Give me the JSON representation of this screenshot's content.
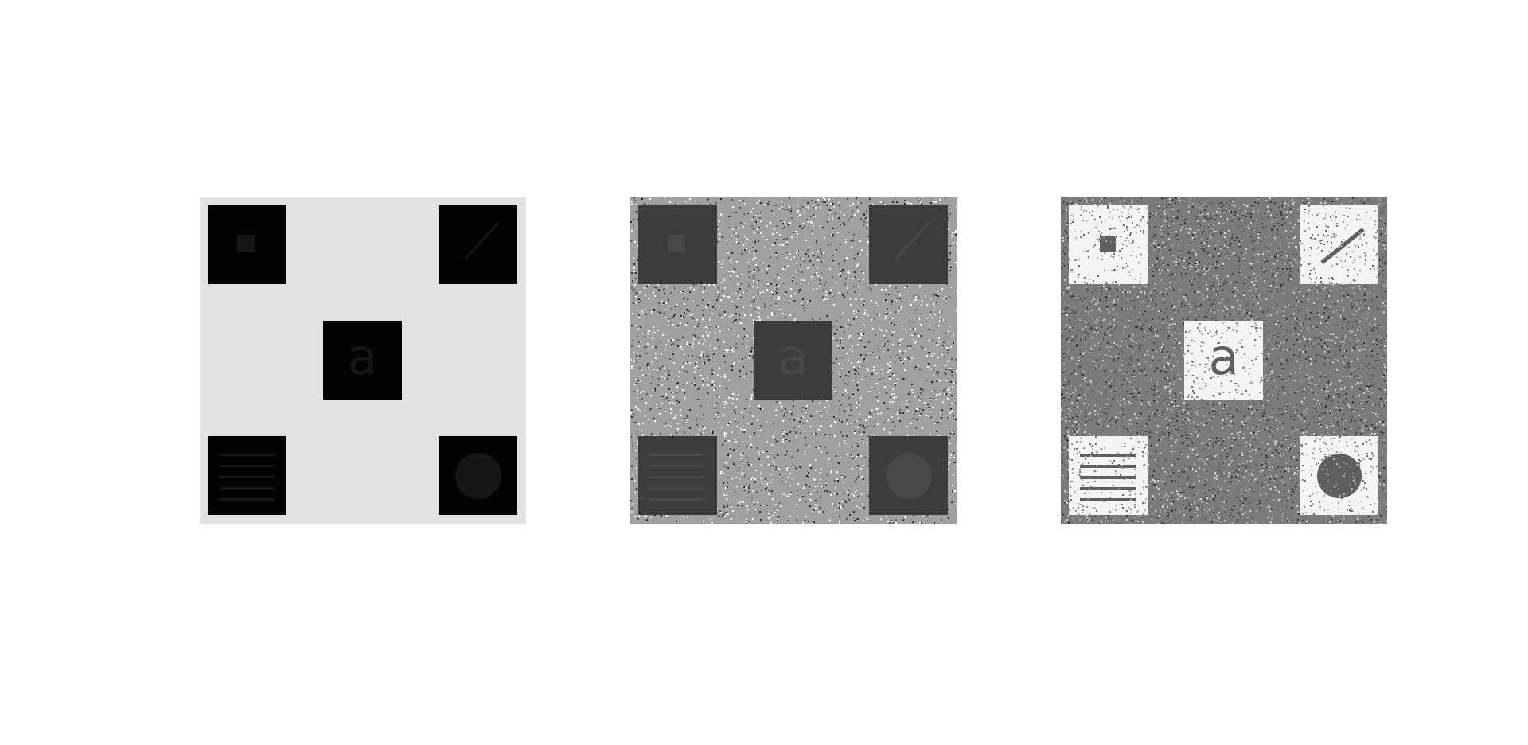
{
  "panels": [
    {
      "background": "#e2e2e2",
      "square": "#030303",
      "feature": "#161616",
      "noise": false
    },
    {
      "background": "#a0a0a0",
      "square": "#3c3c3c",
      "feature": "#484848",
      "noise": true
    },
    {
      "background": "#7b7b7b",
      "square": "#f4f4f4",
      "feature": "#5e5e5e",
      "noise": true
    }
  ],
  "center_letter": "a",
  "squares": [
    {
      "position": "top-left",
      "icon": "small-square-icon"
    },
    {
      "position": "top-right",
      "icon": "diagonal-line-icon"
    },
    {
      "position": "center",
      "icon": "letter-a-icon"
    },
    {
      "position": "bottom-left",
      "icon": "horizontal-lines-icon"
    },
    {
      "position": "bottom-right",
      "icon": "circle-icon"
    }
  ]
}
